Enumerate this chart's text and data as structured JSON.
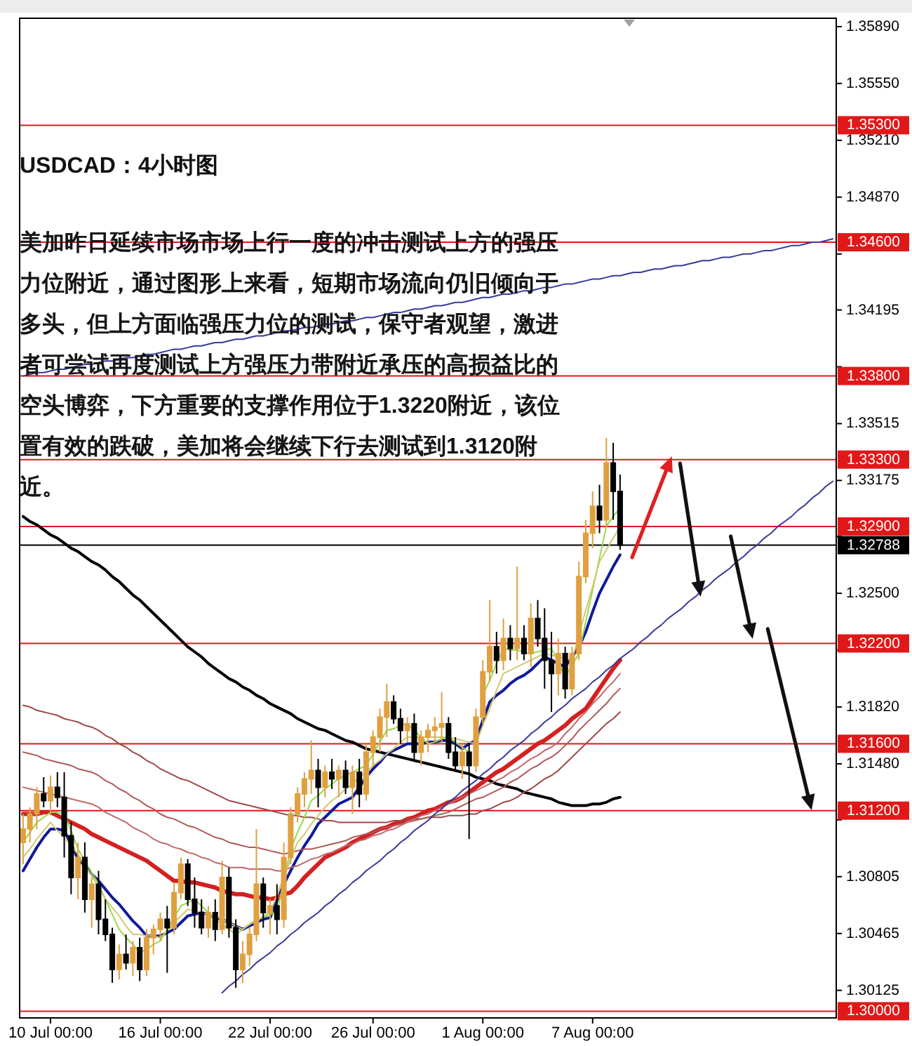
{
  "chart_data": {
    "type": "candlestick",
    "title": "USDCAD：4小时图",
    "annotations": [
      "美加昨日延续市场市场上行一度的冲击测试上方的强压力位附近，通过图形上来看，短期市场流向仍旧倾向于多头，但上方面临强压力位的测试，保守者观望，激进者可尝试再度测试上方强压力带附近承压的高损益比的空头博弈，下方重要的支撑作用位于1.3220附近，该位置有效的跌破，美加将会继续下行去测试到1.3120附近。"
    ],
    "categories": [
      null,
      null,
      null,
      null,
      "10 Jul 00:00",
      null,
      null,
      null,
      null,
      null,
      null,
      null,
      null,
      null,
      null,
      null,
      null,
      null,
      null,
      null,
      "16 Jul 00:00",
      null,
      null,
      null,
      null,
      null,
      null,
      null,
      null,
      null,
      null,
      null,
      null,
      null,
      null,
      null,
      "22 Jul 00:00",
      null,
      null,
      null,
      null,
      null,
      null,
      null,
      null,
      null,
      null,
      null,
      null,
      null,
      null,
      "26 Jul 00:00",
      null,
      null,
      null,
      null,
      null,
      null,
      null,
      null,
      null,
      null,
      null,
      null,
      null,
      null,
      null,
      "1 Aug 00:00",
      null,
      null,
      null,
      null,
      null,
      null,
      null,
      null,
      null,
      null,
      null,
      null,
      null,
      null,
      null,
      "7 Aug 00:00",
      null,
      null,
      null,
      null,
      null,
      null,
      null,
      null,
      null,
      null,
      null,
      null,
      null,
      null,
      null,
      null,
      null,
      null,
      null,
      null,
      null,
      null,
      null,
      null,
      null,
      null,
      null,
      null,
      null,
      null,
      null,
      null,
      null,
      null,
      null
    ],
    "ohlc": [
      [
        1.3101,
        1.3118,
        1.3088,
        1.3109
      ],
      [
        1.3109,
        1.3122,
        1.3101,
        1.3118
      ],
      [
        1.3118,
        1.3134,
        1.3109,
        1.313
      ],
      [
        1.313,
        1.314,
        1.3122,
        1.3126
      ],
      [
        1.3126,
        1.3141,
        1.3118,
        1.3134
      ],
      [
        1.3134,
        1.3143,
        1.3122,
        1.3128
      ],
      [
        1.3128,
        1.3143,
        1.3092,
        1.3105
      ],
      [
        1.3105,
        1.3113,
        1.307,
        1.308
      ],
      [
        1.308,
        1.3101,
        1.3067,
        1.3092
      ],
      [
        1.3092,
        1.3101,
        1.3059,
        1.3067
      ],
      [
        1.3067,
        1.308,
        1.305,
        1.3076
      ],
      [
        1.3076,
        1.3084,
        1.3046,
        1.3055
      ],
      [
        1.3055,
        1.3067,
        1.3042,
        1.3046
      ],
      [
        1.3046,
        1.305,
        1.3017,
        1.3025
      ],
      [
        1.3025,
        1.304,
        1.3019,
        1.3034
      ],
      [
        1.3034,
        1.3046,
        1.3025,
        1.3029
      ],
      [
        1.3029,
        1.3042,
        1.3021,
        1.3038
      ],
      [
        1.3038,
        1.3044,
        1.3018,
        1.3025
      ],
      [
        1.3025,
        1.3049,
        1.3021,
        1.3044
      ],
      [
        1.3044,
        1.3052,
        1.3034,
        1.3049
      ],
      [
        1.3049,
        1.3059,
        1.3042,
        1.3055
      ],
      [
        1.3055,
        1.3063,
        1.3023,
        1.305
      ],
      [
        1.305,
        1.3077,
        1.3046,
        1.3071
      ],
      [
        1.3071,
        1.3092,
        1.3067,
        1.3088
      ],
      [
        1.3088,
        1.3091,
        1.3063,
        1.3067
      ],
      [
        1.3067,
        1.308,
        1.305,
        1.3059
      ],
      [
        1.3059,
        1.3067,
        1.3046,
        1.305
      ],
      [
        1.305,
        1.3063,
        1.3044,
        1.3059
      ],
      [
        1.3059,
        1.3067,
        1.3042,
        1.3049
      ],
      [
        1.3049,
        1.309,
        1.3046,
        1.308
      ],
      [
        1.308,
        1.3086,
        1.3044,
        1.305
      ],
      [
        1.305,
        1.3055,
        1.3014,
        1.3025
      ],
      [
        1.3025,
        1.3042,
        1.3017,
        1.3034
      ],
      [
        1.3034,
        1.305,
        1.3027,
        1.3046
      ],
      [
        1.3046,
        1.3109,
        1.3042,
        1.3076
      ],
      [
        1.3076,
        1.308,
        1.305,
        1.3059
      ],
      [
        1.3059,
        1.3067,
        1.3046,
        1.3063
      ],
      [
        1.3063,
        1.3076,
        1.3046,
        1.3055
      ],
      [
        1.3055,
        1.3101,
        1.305,
        1.3092
      ],
      [
        1.3092,
        1.3122,
        1.3088,
        1.3118
      ],
      [
        1.3118,
        1.3134,
        1.3113,
        1.313
      ],
      [
        1.313,
        1.3143,
        1.3122,
        1.3139
      ],
      [
        1.3139,
        1.3162,
        1.313,
        1.3144
      ],
      [
        1.3144,
        1.3151,
        1.3122,
        1.3134
      ],
      [
        1.3134,
        1.3147,
        1.3128,
        1.3143
      ],
      [
        1.3143,
        1.3151,
        1.3133,
        1.3139
      ],
      [
        1.3139,
        1.3147,
        1.3128,
        1.3144
      ],
      [
        1.3144,
        1.315,
        1.313,
        1.3134
      ],
      [
        1.3134,
        1.3147,
        1.3118,
        1.3143
      ],
      [
        1.3143,
        1.3151,
        1.3122,
        1.313
      ],
      [
        1.313,
        1.316,
        1.3126,
        1.3155
      ],
      [
        1.3155,
        1.3168,
        1.3147,
        1.3164
      ],
      [
        1.3164,
        1.3181,
        1.3155,
        1.3176
      ],
      [
        1.3176,
        1.3196,
        1.3164,
        1.3185
      ],
      [
        1.3185,
        1.3189,
        1.3172,
        1.3175
      ],
      [
        1.3175,
        1.3181,
        1.316,
        1.3168
      ],
      [
        1.3168,
        1.3176,
        1.3161,
        1.3172
      ],
      [
        1.3172,
        1.3178,
        1.3151,
        1.3155
      ],
      [
        1.3155,
        1.3168,
        1.3147,
        1.3164
      ],
      [
        1.3164,
        1.3172,
        1.3155,
        1.3168
      ],
      [
        1.3168,
        1.3176,
        1.3161,
        1.317
      ],
      [
        1.317,
        1.3191,
        1.316,
        1.3172
      ],
      [
        1.3172,
        1.3176,
        1.3151,
        1.3155
      ],
      [
        1.3155,
        1.3164,
        1.3143,
        1.3147
      ],
      [
        1.3147,
        1.316,
        1.3139,
        1.3155
      ],
      [
        1.3155,
        1.316,
        1.3103,
        1.3147
      ],
      [
        1.3147,
        1.3181,
        1.3143,
        1.3176
      ],
      [
        1.3176,
        1.321,
        1.3172,
        1.3203
      ],
      [
        1.3203,
        1.3246,
        1.3197,
        1.3218
      ],
      [
        1.3218,
        1.3227,
        1.3202,
        1.321
      ],
      [
        1.321,
        1.3235,
        1.3204,
        1.3223
      ],
      [
        1.3223,
        1.3231,
        1.321,
        1.3217
      ],
      [
        1.3217,
        1.3266,
        1.321,
        1.3223
      ],
      [
        1.3223,
        1.3231,
        1.321,
        1.3214
      ],
      [
        1.3214,
        1.3244,
        1.3206,
        1.3235
      ],
      [
        1.3235,
        1.3246,
        1.3218,
        1.3223
      ],
      [
        1.3223,
        1.3241,
        1.3193,
        1.321
      ],
      [
        1.321,
        1.3227,
        1.3179,
        1.3202
      ],
      [
        1.3202,
        1.3223,
        1.3189,
        1.3214
      ],
      [
        1.3214,
        1.3218,
        1.3187,
        1.3193
      ],
      [
        1.3193,
        1.3218,
        1.3189,
        1.3214
      ],
      [
        1.3214,
        1.3269,
        1.321,
        1.326
      ],
      [
        1.326,
        1.3294,
        1.3256,
        1.3286
      ],
      [
        1.3286,
        1.3311,
        1.3277,
        1.3302
      ],
      [
        1.3302,
        1.3315,
        1.3286,
        1.3294
      ],
      [
        1.3294,
        1.3343,
        1.329,
        1.3328
      ],
      [
        1.3328,
        1.334,
        1.3294,
        1.3311
      ],
      [
        1.3311,
        1.3321,
        1.3276,
        1.32788
      ],
      null,
      null,
      null,
      null,
      null,
      null,
      null,
      null,
      null,
      null,
      null,
      null,
      null,
      null,
      null,
      null,
      null,
      null,
      null,
      null,
      null,
      null,
      null,
      null,
      null,
      null,
      null,
      null,
      null,
      null,
      null
    ],
    "colors": [
      "#e0a040",
      "#e0a040",
      "#e0a040",
      "#000000",
      "#e0a040",
      "#000000",
      "#000000",
      "#000000",
      "#e0a040",
      "#000000",
      "#e0a040",
      "#000000",
      "#000000",
      "#000000",
      "#e0a040",
      "#000000",
      "#e0a040",
      "#000000",
      "#e0a040",
      "#e0a040",
      "#e0a040",
      "#000000",
      "#e0a040",
      "#e0a040",
      "#000000",
      "#000000",
      "#000000",
      "#e0a040",
      "#000000",
      "#e0a040",
      "#000000",
      "#000000",
      "#e0a040",
      "#e0a040",
      "#e0a040",
      "#000000",
      "#e0a040",
      "#000000",
      "#e0a040",
      "#e0a040",
      "#e0a040",
      "#e0a040",
      "#e0a040",
      "#000000",
      "#e0a040",
      "#000000",
      "#e0a040",
      "#000000",
      "#e0a040",
      "#000000",
      "#e0a040",
      "#e0a040",
      "#e0a040",
      "#e0a040",
      "#000000",
      "#000000",
      "#e0a040",
      "#000000",
      "#e0a040",
      "#e0a040",
      "#e0a040",
      "#e0a040",
      "#000000",
      "#000000",
      "#e0a040",
      "#000000",
      "#e0a040",
      "#e0a040",
      "#e0a040",
      "#000000",
      "#e0a040",
      "#000000",
      "#e0a040",
      "#000000",
      "#e0a040",
      "#000000",
      "#000000",
      "#000000",
      "#e0a040",
      "#000000",
      "#e0a040",
      "#e0a040",
      "#e0a040",
      "#e0a040",
      "#000000",
      "#e0a040",
      "#000000",
      "#000000",
      null,
      null,
      null,
      null,
      null,
      null,
      null,
      null,
      null,
      null,
      null,
      null,
      null,
      null,
      null,
      null,
      null,
      null,
      null,
      null,
      null,
      null,
      null,
      null,
      null,
      null,
      null,
      null,
      null,
      null,
      null
    ],
    "series": [
      {
        "type": "line",
        "color": "#000000",
        "values": [
          1.3296,
          1.3293,
          1.3291,
          1.3288,
          1.3285,
          1.3283,
          1.328,
          1.3277,
          1.3275,
          1.3272,
          1.3269,
          1.3267,
          1.3264,
          1.326,
          1.3257,
          1.3253,
          1.3249,
          1.3246,
          1.3242,
          1.3238,
          1.3234,
          1.323,
          1.3226,
          1.3222,
          1.3218,
          1.3215,
          1.3212,
          1.3208,
          1.3205,
          1.3202,
          1.3199,
          1.3197,
          1.3194,
          1.3192,
          1.3189,
          1.3187,
          1.3184,
          1.3182,
          1.318,
          1.3178,
          1.3175,
          1.3173,
          1.3171,
          1.3169,
          1.3168,
          1.3166,
          1.3164,
          1.3162,
          1.3161,
          1.3159,
          1.3157,
          1.3156,
          1.3155,
          1.3154,
          1.3153,
          1.3152,
          1.3151,
          1.315,
          1.3149,
          1.3148,
          1.3147,
          1.3146,
          1.3145,
          1.3144,
          1.3143,
          1.3142,
          1.314,
          1.3139,
          1.3138,
          1.3136,
          1.3135,
          1.3134,
          1.3133,
          1.3131,
          1.313,
          1.3129,
          1.3128,
          1.3127,
          1.3125,
          1.3124,
          1.3123,
          1.3123,
          1.3123,
          1.3124,
          1.3124,
          1.3125,
          1.3127,
          1.3128,
          null,
          null,
          null,
          null,
          null,
          null,
          null,
          null,
          null,
          null,
          null,
          null,
          null,
          null,
          null,
          null,
          null,
          null,
          null,
          null,
          null,
          null,
          null,
          null,
          null,
          null,
          null,
          null,
          null,
          null,
          null
        ]
      },
      {
        "type": "line",
        "color": "#101a9a",
        "values": [
          1.3084,
          1.3091,
          1.3098,
          1.3104,
          1.3109,
          1.3109,
          1.3108,
          1.31,
          1.3091,
          1.3087,
          1.3082,
          1.3078,
          1.3073,
          1.3068,
          1.3064,
          1.3059,
          1.3054,
          1.305,
          1.3045,
          1.3045,
          1.3045,
          1.3047,
          1.3049,
          1.3053,
          1.3057,
          1.3058,
          1.3059,
          1.3058,
          1.3056,
          1.3055,
          1.3053,
          1.3051,
          1.3049,
          1.3051,
          1.3053,
          1.3055,
          1.3056,
          1.3066,
          1.3076,
          1.3084,
          1.3092,
          1.3099,
          1.3105,
          1.3112,
          1.3116,
          1.312,
          1.3124,
          1.3126,
          1.3128,
          1.3134,
          1.314,
          1.3145,
          1.3149,
          1.3154,
          1.3156,
          1.3158,
          1.316,
          1.316,
          1.316,
          1.3161,
          1.3161,
          1.3162,
          1.3162,
          1.316,
          1.3157,
          1.316,
          1.3162,
          1.3174,
          1.3185,
          1.3189,
          1.3192,
          1.3196,
          1.3199,
          1.3201,
          1.3204,
          1.3208,
          1.3212,
          1.321,
          1.3208,
          1.3206,
          1.3212,
          1.3218,
          1.3227,
          1.3239,
          1.325,
          1.3258,
          1.3266,
          1.3273,
          null,
          null,
          null,
          null,
          null,
          null,
          null,
          null,
          null,
          null,
          null,
          null,
          null,
          null,
          null,
          null,
          null,
          null,
          null,
          null,
          null,
          null,
          null,
          null,
          null,
          null,
          null,
          null,
          null,
          null,
          null
        ]
      },
      {
        "type": "line",
        "color": "#d42020",
        "values": [
          1.3118,
          1.3118,
          1.3118,
          1.3119,
          1.3119,
          1.3117,
          1.3115,
          1.3113,
          1.3111,
          1.3109,
          1.3106,
          1.3104,
          1.3102,
          1.31,
          1.3098,
          1.3096,
          1.3094,
          1.3092,
          1.309,
          1.3087,
          1.3084,
          1.3081,
          1.3078,
          1.3078,
          1.3077,
          1.3077,
          1.3076,
          1.3075,
          1.3074,
          1.3072,
          1.3071,
          1.307,
          1.307,
          1.3069,
          1.3068,
          1.3068,
          1.3067,
          1.3068,
          1.307,
          1.3071,
          1.3075,
          1.308,
          1.3084,
          1.3088,
          1.3092,
          1.3094,
          1.3096,
          1.3098,
          1.3101,
          1.3103,
          1.3105,
          1.3107,
          1.3109,
          1.311,
          1.3112,
          1.3113,
          1.3115,
          1.3116,
          1.3118,
          1.312,
          1.3121,
          1.3123,
          1.3125,
          1.3126,
          1.3128,
          1.3131,
          1.3134,
          1.3137,
          1.314,
          1.3143,
          1.3145,
          1.3148,
          1.3151,
          1.3154,
          1.3157,
          1.316,
          1.3162,
          1.3165,
          1.3168,
          1.3171,
          1.3175,
          1.3178,
          1.3181,
          1.3187,
          1.3193,
          1.3199,
          1.3205,
          1.321,
          null,
          null,
          null,
          null,
          null,
          null,
          null,
          null,
          null,
          null,
          null,
          null,
          null,
          null,
          null,
          null,
          null,
          null,
          null,
          null,
          null,
          null,
          null,
          null,
          null,
          null,
          null,
          null,
          null,
          null,
          null
        ]
      },
      {
        "type": "line",
        "color": "#a04848",
        "values": [
          1.3183,
          1.3182,
          1.318,
          1.3179,
          1.3178,
          1.3177,
          1.3175,
          1.3174,
          1.3173,
          1.3171,
          1.317,
          1.3168,
          1.3165,
          1.3163,
          1.316,
          1.3158,
          1.3155,
          1.3153,
          1.315,
          1.3148,
          1.3145,
          1.3143,
          1.3141,
          1.3139,
          1.3138,
          1.3136,
          1.3134,
          1.3132,
          1.313,
          1.3128,
          1.3126,
          1.3125,
          1.3124,
          1.3123,
          1.3122,
          1.3121,
          1.312,
          1.3119,
          1.3118,
          1.3117,
          1.3117,
          1.3116,
          1.3116,
          1.3115,
          1.3114,
          1.3114,
          1.3113,
          1.3113,
          1.3113,
          1.3113,
          1.3113,
          1.3113,
          1.3113,
          1.3113,
          1.3114,
          1.3114,
          1.3115,
          1.3115,
          1.3115,
          1.3116,
          1.3116,
          1.3116,
          1.3117,
          1.3117,
          1.3117,
          1.3118,
          1.3118,
          1.312,
          1.3121,
          1.3123,
          1.3125,
          1.3126,
          1.3128,
          1.3131,
          1.3133,
          1.3136,
          1.3139,
          1.3141,
          1.3144,
          1.3148,
          1.3152,
          1.3156,
          1.316,
          1.3164,
          1.3168,
          1.3172,
          1.3175,
          1.3179,
          null,
          null,
          null,
          null,
          null,
          null,
          null,
          null,
          null,
          null,
          null,
          null,
          null,
          null,
          null,
          null,
          null,
          null,
          null,
          null,
          null,
          null,
          null,
          null,
          null,
          null,
          null,
          null,
          null,
          null,
          null
        ]
      },
      {
        "type": "line",
        "color": "#b05858",
        "values": [
          1.3155,
          1.3154,
          1.3153,
          1.3151,
          1.315,
          1.3149,
          1.3148,
          1.3147,
          1.3145,
          1.3144,
          1.3143,
          1.3141,
          1.3138,
          1.3136,
          1.3133,
          1.3131,
          1.3128,
          1.3126,
          1.3123,
          1.3121,
          1.3118,
          1.3116,
          1.3115,
          1.3113,
          1.3111,
          1.311,
          1.3108,
          1.3106,
          1.3104,
          1.3103,
          1.3101,
          1.31,
          1.3099,
          1.3098,
          1.3098,
          1.3097,
          1.3096,
          1.3095,
          1.3094,
          1.3095,
          1.3096,
          1.3097,
          1.3097,
          1.3098,
          1.3099,
          1.31,
          1.3101,
          1.3102,
          1.3104,
          1.3105,
          1.3106,
          1.3107,
          1.3109,
          1.311,
          1.3111,
          1.3112,
          1.3113,
          1.3114,
          1.3115,
          1.3116,
          1.3117,
          1.3118,
          1.3119,
          1.3121,
          1.3123,
          1.3125,
          1.3127,
          1.3128,
          1.313,
          1.3132,
          1.3134,
          1.3137,
          1.3139,
          1.3142,
          1.3145,
          1.3147,
          1.315,
          1.3152,
          1.3155,
          1.3159,
          1.3163,
          1.3168,
          1.3172,
          1.3176,
          1.318,
          1.3184,
          1.3189,
          1.3193,
          null,
          null,
          null,
          null,
          null,
          null,
          null,
          null,
          null,
          null,
          null,
          null,
          null,
          null,
          null,
          null,
          null,
          null,
          null,
          null,
          null,
          null,
          null,
          null,
          null,
          null,
          null,
          null,
          null,
          null,
          null
        ]
      },
      {
        "type": "line",
        "color": "#c06868",
        "values": [
          1.3134,
          1.3133,
          1.3132,
          1.3131,
          1.313,
          1.3129,
          1.3128,
          1.3127,
          1.3126,
          1.3125,
          1.3124,
          1.3122,
          1.3119,
          1.3117,
          1.3115,
          1.3113,
          1.311,
          1.3108,
          1.3106,
          1.3103,
          1.3101,
          1.31,
          1.3098,
          1.3097,
          1.3095,
          1.3094,
          1.3092,
          1.3091,
          1.3089,
          1.3088,
          1.3086,
          1.3086,
          1.3086,
          1.3085,
          1.3085,
          1.3085,
          1.3085,
          1.3084,
          1.3084,
          1.3086,
          1.3087,
          1.3089,
          1.3091,
          1.3092,
          1.3094,
          1.3095,
          1.3097,
          1.3099,
          1.31,
          1.3102,
          1.3103,
          1.3105,
          1.3106,
          1.3108,
          1.3109,
          1.3111,
          1.3113,
          1.3115,
          1.3117,
          1.3118,
          1.312,
          1.3122,
          1.3124,
          1.3126,
          1.3128,
          1.313,
          1.3132,
          1.3134,
          1.3136,
          1.3138,
          1.314,
          1.3143,
          1.3145,
          1.3148,
          1.3151,
          1.3153,
          1.3156,
          1.3158,
          1.3161,
          1.3166,
          1.317,
          1.3175,
          1.3179,
          1.3184,
          1.3188,
          1.3193,
          1.3197,
          1.3202,
          null,
          null,
          null,
          null,
          null,
          null,
          null,
          null,
          null,
          null,
          null,
          null,
          null,
          null,
          null,
          null,
          null,
          null,
          null,
          null,
          null,
          null,
          null,
          null,
          null,
          null,
          null,
          null,
          null,
          null,
          null
        ]
      },
      {
        "type": "line",
        "color": "#98d848",
        "values": [
          1.3101,
          1.3107,
          1.3113,
          1.3116,
          1.3119,
          1.3119,
          1.3118,
          1.3108,
          1.3097,
          1.309,
          1.3083,
          1.3076,
          1.3067,
          1.3058,
          1.3049,
          1.3044,
          1.304,
          1.3035,
          1.3037,
          1.304,
          1.3042,
          1.3049,
          1.3056,
          1.3063,
          1.3065,
          1.3067,
          1.3063,
          1.3059,
          1.3055,
          1.3052,
          1.3049,
          1.3046,
          1.3049,
          1.3052,
          1.3055,
          1.3056,
          1.3058,
          1.3059,
          1.3078,
          1.3097,
          1.3107,
          1.3116,
          1.3126,
          1.3129,
          1.3133,
          1.3136,
          1.3139,
          1.3141,
          1.3143,
          1.3145,
          1.3147,
          1.3154,
          1.3161,
          1.3168,
          1.3169,
          1.3171,
          1.3172,
          1.3168,
          1.3164,
          1.316,
          1.3161,
          1.3163,
          1.3164,
          1.3161,
          1.3158,
          1.3155,
          null,
          1.3189,
          1.3198,
          1.3208,
          1.3217,
          1.3216,
          1.3216,
          1.3215,
          1.3214,
          1.3215,
          1.3216,
          1.3217,
          1.3209,
          1.32,
          1.3207,
          1.3214,
          1.3233,
          1.3252,
          1.3271,
          1.329,
          1.3296,
          1.3301,
          null,
          null,
          null,
          null,
          null,
          null,
          null,
          null,
          null,
          null,
          null,
          null,
          null,
          null,
          null,
          null,
          null,
          null,
          null,
          null,
          null,
          null,
          null,
          null,
          null,
          null,
          null,
          null,
          null,
          null,
          null
        ]
      },
      {
        "type": "line",
        "color": "#d0c870",
        "values": [
          1.3092,
          1.3097,
          1.3103,
          1.3108,
          1.3113,
          1.3108,
          1.3104,
          1.3099,
          1.3094,
          1.3087,
          1.3081,
          1.3074,
          1.3067,
          1.3062,
          1.3057,
          1.3051,
          1.3046,
          1.3046,
          1.3045,
          1.3045,
          1.3044,
          1.3048,
          1.3053,
          1.3057,
          1.3061,
          1.306,
          1.3059,
          1.3058,
          1.3057,
          1.3055,
          1.3053,
          1.3051,
          1.3049,
          1.3052,
          1.3054,
          1.3057,
          1.3059,
          1.307,
          1.308,
          1.3091,
          1.3101,
          1.3106,
          1.3112,
          1.3117,
          1.3122,
          1.3126,
          1.3129,
          1.3133,
          1.3136,
          1.314,
          1.3143,
          1.3147,
          1.315,
          1.3154,
          1.3157,
          1.3161,
          1.3164,
          1.3164,
          1.3164,
          1.3164,
          1.3164,
          1.3164,
          1.3164,
          1.3163,
          1.3162,
          1.3161,
          1.316,
          1.3171,
          1.3181,
          1.3192,
          1.3202,
          1.3204,
          1.3206,
          1.3208,
          1.321,
          1.3212,
          1.3214,
          1.3213,
          1.3212,
          1.3211,
          1.321,
          1.3225,
          1.324,
          1.3254,
          1.3269,
          1.3276,
          1.3283,
          1.329,
          null,
          null,
          null,
          null,
          null,
          null,
          null,
          null,
          null,
          null,
          null,
          null,
          null,
          null,
          null,
          null,
          null,
          null,
          null,
          null,
          null,
          null,
          null,
          null,
          null,
          null,
          null,
          null,
          null,
          null,
          null
        ]
      },
      {
        "type": "line",
        "color": "#3a3a9a",
        "values": [
          null,
          null,
          null,
          null,
          null,
          null,
          null,
          null,
          null,
          null,
          null,
          null,
          null,
          null,
          null,
          null,
          null,
          null,
          null,
          null,
          null,
          null,
          null,
          null,
          null,
          null,
          null,
          null,
          null,
          1.3011,
          1.3015,
          1.3018,
          1.3022,
          1.3025,
          1.3029,
          1.3032,
          1.3035,
          1.3039,
          1.3042,
          1.3046,
          1.3049,
          1.3053,
          1.3056,
          1.3059,
          1.3063,
          1.3066,
          1.307,
          1.3073,
          1.3077,
          1.308,
          1.3084,
          1.3087,
          1.309,
          1.3094,
          1.3097,
          1.3101,
          1.3104,
          1.3108,
          1.3111,
          1.3114,
          1.3118,
          1.3121,
          1.3125,
          1.3128,
          1.3132,
          1.3135,
          1.3138,
          1.3142,
          1.3145,
          1.3149,
          1.3152,
          1.3156,
          1.3159,
          1.3162,
          1.3166,
          1.3169,
          1.3173,
          1.3176,
          1.318,
          1.3183,
          1.3187,
          1.319,
          1.3193,
          1.3197,
          1.32,
          1.3204,
          1.3207,
          1.3211,
          1.3214,
          1.3217,
          1.3221,
          1.3224,
          1.3228,
          1.3231,
          1.3235,
          1.3238,
          1.3241,
          1.3245,
          1.3248,
          1.3252,
          1.3255,
          1.3259,
          1.3262,
          1.3265,
          1.3269,
          1.3272,
          1.3276,
          1.3279,
          1.3283,
          1.3286,
          1.329,
          1.3293,
          1.3296,
          1.33,
          1.3303,
          1.3307,
          1.331,
          1.3314,
          1.3317
        ]
      },
      {
        "type": "line",
        "color": "#3a3a9a",
        "values": [
          1.338,
          1.3381,
          1.3382,
          1.3382,
          1.3383,
          1.3384,
          1.3384,
          1.3385,
          1.3386,
          1.3387,
          1.3387,
          1.3388,
          1.3389,
          1.3389,
          1.339,
          1.3391,
          1.3391,
          1.3392,
          1.3393,
          1.3393,
          1.3394,
          1.3395,
          1.3396,
          1.3396,
          1.3397,
          1.3398,
          1.3398,
          1.3399,
          1.34,
          1.34,
          1.3401,
          1.3402,
          1.3402,
          1.3403,
          1.3404,
          1.3404,
          1.3405,
          1.3406,
          1.3407,
          1.3407,
          1.3408,
          1.3409,
          1.3409,
          1.341,
          1.3411,
          1.3411,
          1.3412,
          1.3413,
          1.3413,
          1.3414,
          1.3415,
          1.3415,
          1.3416,
          1.3417,
          1.3418,
          1.3418,
          1.3419,
          1.342,
          1.342,
          1.3421,
          1.3422,
          1.3422,
          1.3423,
          1.3424,
          1.3424,
          1.3425,
          1.3426,
          1.3427,
          1.3427,
          1.3428,
          1.3429,
          1.3429,
          1.343,
          1.3431,
          1.3431,
          1.3432,
          1.3433,
          1.3433,
          1.3434,
          1.3435,
          1.3435,
          1.3436,
          1.3437,
          1.3438,
          1.3438,
          1.3439,
          1.344,
          1.344,
          1.3441,
          1.3442,
          1.3442,
          1.3443,
          1.3444,
          1.3444,
          1.3445,
          1.3446,
          1.3446,
          1.3447,
          1.3448,
          1.3449,
          1.3449,
          1.345,
          1.3451,
          1.3451,
          1.3452,
          1.3453,
          1.3453,
          1.3454,
          1.3455,
          1.3455,
          1.3456,
          1.3457,
          1.3458,
          1.3458,
          1.3459,
          1.346,
          1.346,
          1.3461,
          1.3462
        ]
      }
    ],
    "ylim": [
      1.2996,
      1.3594
    ],
    "yticks": [
      {
        "value": 1.3589,
        "label": "1.35890"
      },
      {
        "value": 1.3555,
        "label": "1.35550"
      },
      {
        "value": 1.3521,
        "label": "1.35210"
      },
      {
        "value": 1.3487,
        "label": "1.34870"
      },
      {
        "value": 1.3453,
        "label": null
      },
      {
        "value": 1.34195,
        "label": "1.34195"
      },
      {
        "value": 1.33855,
        "label": null
      },
      {
        "value": 1.33515,
        "label": "1.33515"
      },
      {
        "value": 1.33175,
        "label": "1.33175"
      },
      {
        "value": 1.3284,
        "label": null
      },
      {
        "value": 1.325,
        "label": "1.32500"
      },
      {
        "value": 1.3216,
        "label": null
      },
      {
        "value": 1.3182,
        "label": "1.31820"
      },
      {
        "value": 1.3148,
        "label": "1.31480"
      },
      {
        "value": 1.31145,
        "label": null
      },
      {
        "value": 1.30805,
        "label": "1.30805"
      },
      {
        "value": 1.30465,
        "label": "1.30465"
      },
      {
        "value": 1.30125,
        "label": "1.30125"
      }
    ],
    "ref_lines": [
      {
        "axis": "y",
        "value": 1.353,
        "label": "1.35300",
        "color": "#e01818"
      },
      {
        "axis": "y",
        "value": 1.346,
        "label": "1.34600",
        "color": "#e01818"
      },
      {
        "axis": "y",
        "value": 1.338,
        "label": "1.33800",
        "color": "#e01818"
      },
      {
        "axis": "y",
        "value": 1.333,
        "label": "1.33300",
        "color": "#e01818"
      },
      {
        "axis": "y",
        "value": 1.329,
        "label": "1.32900",
        "color": "#e01818"
      },
      {
        "axis": "y",
        "value": 1.32788,
        "label": "1.32788",
        "color": "#000000"
      },
      {
        "axis": "y",
        "value": 1.322,
        "label": "1.32200",
        "color": "#e01818"
      },
      {
        "axis": "y",
        "value": 1.316,
        "label": "1.31600",
        "color": "#e01818"
      },
      {
        "axis": "y",
        "value": 1.312,
        "label": "1.31200",
        "color": "#e01818"
      },
      {
        "axis": "y",
        "value": 1.3,
        "label": "1.30000",
        "color": "#e01818"
      }
    ]
  }
}
